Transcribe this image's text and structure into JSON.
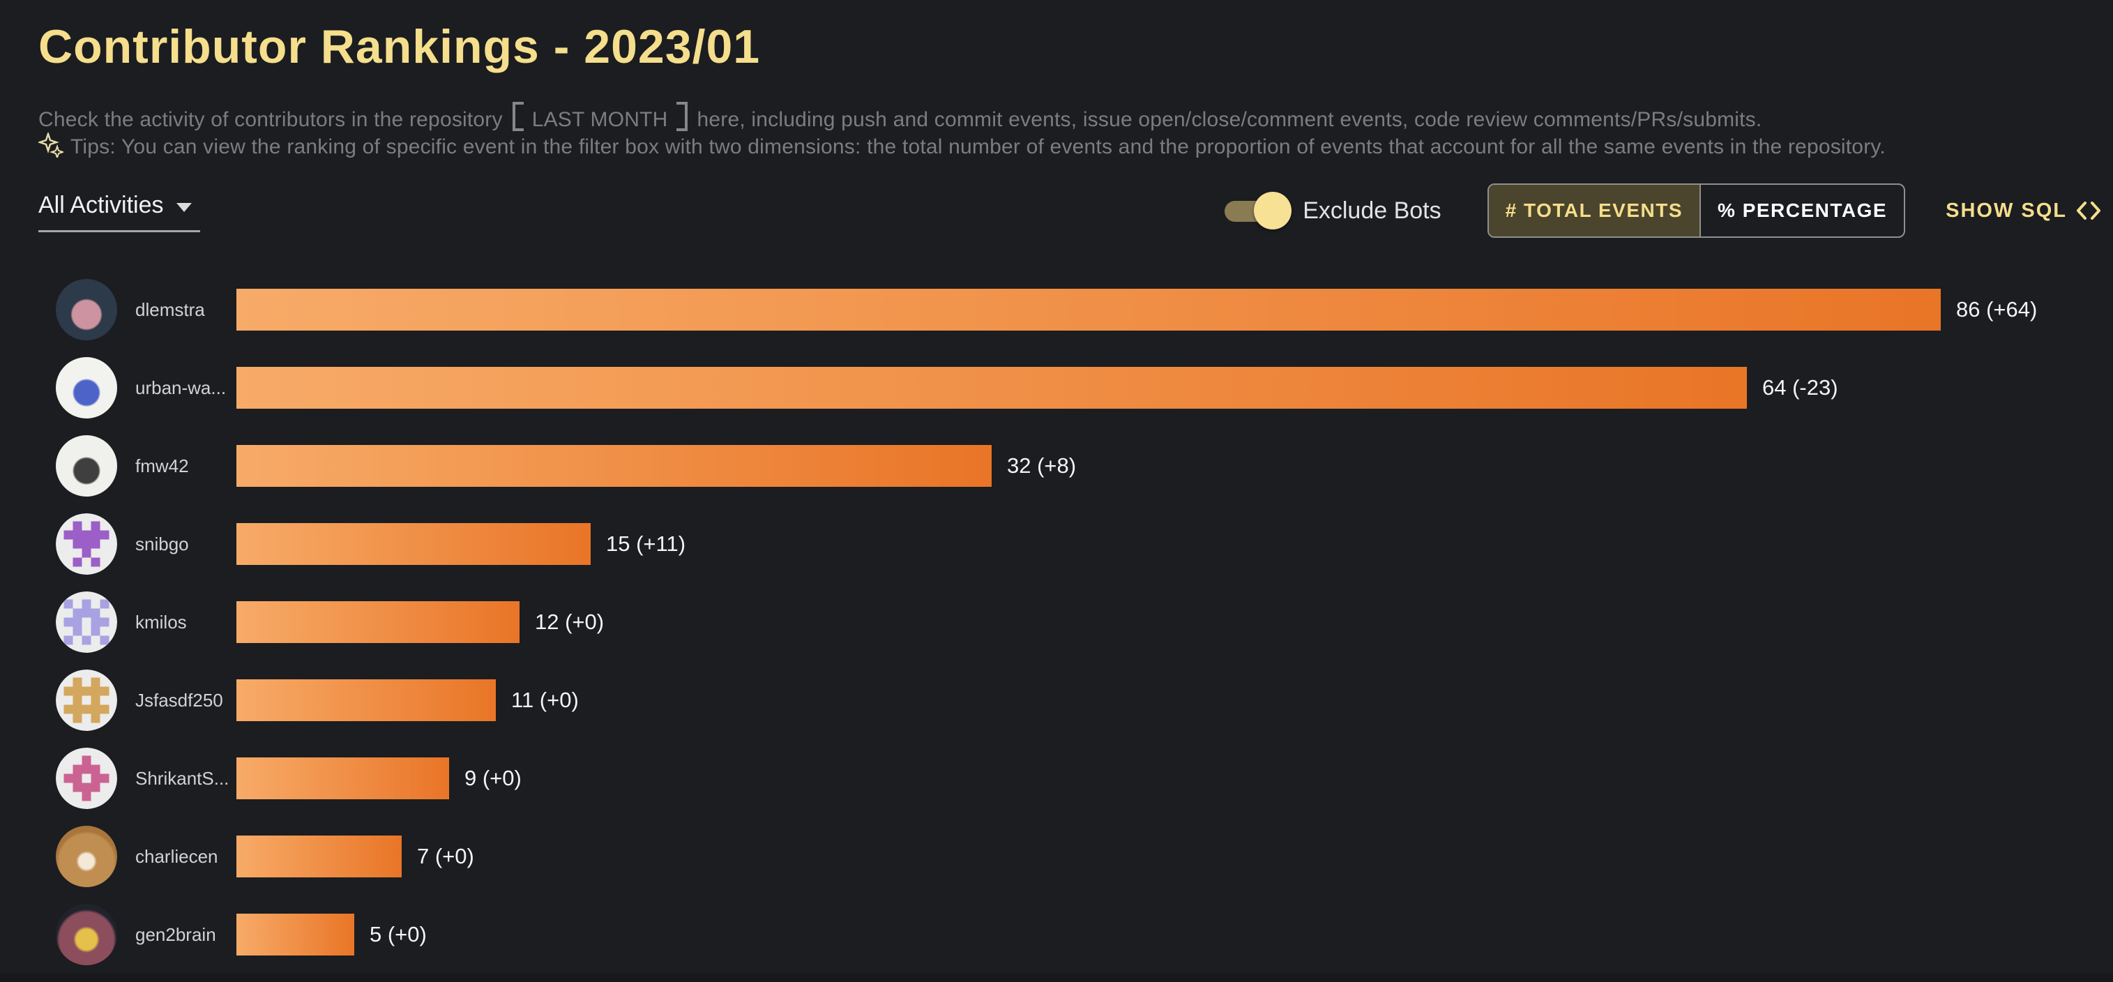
{
  "page": {
    "title": "Contributor Rankings - 2023/01",
    "description_line1": {
      "pre": "Check the activity of contributors in the repository",
      "bracket_text": "LAST MONTH",
      "post": "here, including push and commit events, issue open/close/comment events, code review comments/PRs/submits."
    },
    "description_line2": "Tips: You can view the ranking of specific event in the filter box with two dimensions: the total number of events and the proportion of events that account for all the same events in the repository.",
    "background_color": "#1B1D20",
    "accent_color": "#F5DE8C"
  },
  "controls": {
    "activity_filter": {
      "value": "All Activities"
    },
    "exclude_bots": {
      "label": "Exclude Bots",
      "enabled": true,
      "knob_color": "#F7E194",
      "track_color": "#8A7C52"
    },
    "display_mode": {
      "options": [
        {
          "label": "# TOTAL EVENTS",
          "selected": true
        },
        {
          "label": "% PERCENTAGE",
          "selected": false
        }
      ]
    },
    "show_sql": {
      "label": "SHOW SQL"
    }
  },
  "chart_data": {
    "type": "bar",
    "orientation": "horizontal",
    "title": "Contributor Rankings - 2023/01",
    "categories": [
      "dlemstra",
      "urban-wa...",
      "fmw42",
      "snibgo",
      "kmilos",
      "Jsfasdf250",
      "ShrikantS...",
      "charliecen",
      "gen2brain"
    ],
    "values": [
      86,
      64,
      32,
      15,
      12,
      11,
      9,
      7,
      5
    ],
    "deltas": [
      64,
      -23,
      8,
      11,
      0,
      0,
      0,
      0,
      0
    ],
    "value_labels": [
      "86 (+64)",
      "64 (-23)",
      "32 (+8)",
      "15 (+11)",
      "12 (+0)",
      "11 (+0)",
      "9 (+0)",
      "7 (+0)",
      "5 (+0)"
    ],
    "bar_gradient": [
      "#F7AB68",
      "#E97527"
    ],
    "value_label_color": "#F5F5F5",
    "category_label_color": "#D2D2D2",
    "x_axis": {
      "min": 0,
      "visible_max": 72,
      "gridlines": false,
      "first_bar_clipped": true
    },
    "legend": false
  },
  "avatars": [
    {
      "type": "photo",
      "stops": [
        "#CE93A0 0% 30%",
        "#2C3A4A 34%"
      ]
    },
    {
      "type": "photo",
      "stops": [
        "#4E63C8 0% 26%",
        "#F2F2EE 30%"
      ]
    },
    {
      "type": "photo",
      "stops": [
        "#3F3F3F 0% 26%",
        "#F0F0EC 30%"
      ]
    },
    {
      "type": "identicon",
      "fg": "#9B5FC7",
      "bg": "#ECECEC",
      "grid": [
        "01010",
        "11111",
        "01110",
        "00100",
        "01010"
      ]
    },
    {
      "type": "identicon",
      "fg": "#A8A2E2",
      "bg": "#ECECEC",
      "grid": [
        "10101",
        "01110",
        "11011",
        "01010",
        "10101"
      ]
    },
    {
      "type": "identicon",
      "fg": "#D3A75D",
      "bg": "#ECECEC",
      "grid": [
        "01010",
        "11111",
        "01010",
        "11111",
        "01010"
      ]
    },
    {
      "type": "identicon",
      "fg": "#CB6392",
      "bg": "#ECECEC",
      "grid": [
        "00100",
        "01110",
        "11011",
        "01110",
        "00100"
      ]
    },
    {
      "type": "photo",
      "stops": [
        "#F4E9D6 0% 16%",
        "#C08E51 22% 58%",
        "#A8763B 64%"
      ]
    },
    {
      "type": "photo",
      "stops": [
        "#E5C04A 0% 22%",
        "#8C4D5C 28% 58%",
        "#20232B 64%"
      ]
    }
  ]
}
